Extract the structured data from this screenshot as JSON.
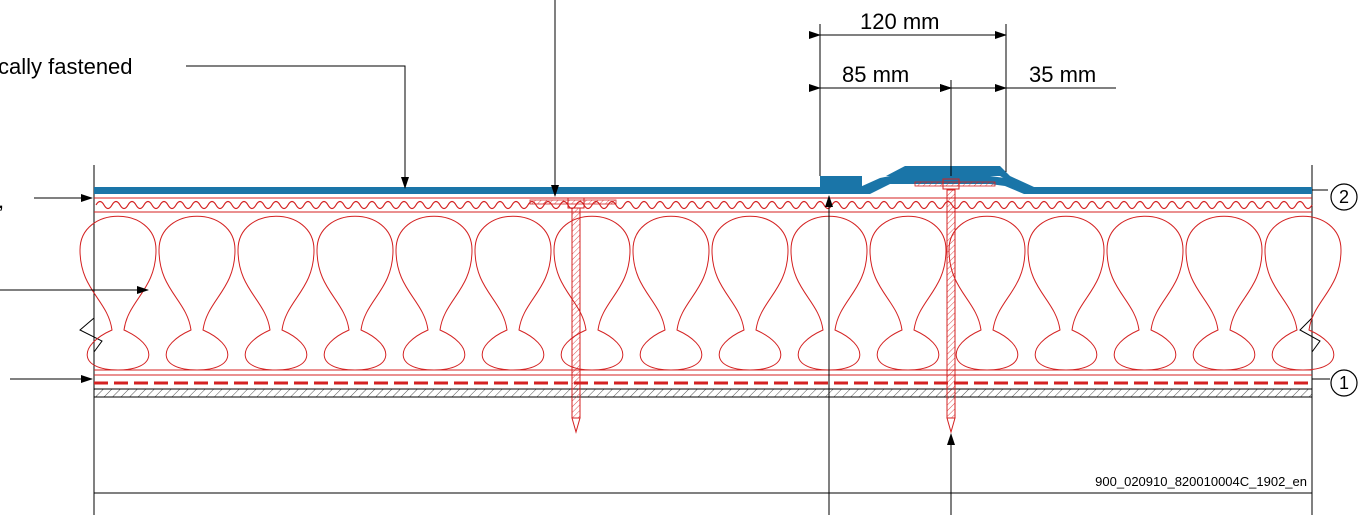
{
  "labels": {
    "top_left_callout": "cally fastened",
    "comma_mark": ","
  },
  "dimensions": {
    "total_overlap": "120 mm",
    "seam_to_fastener": "85 mm",
    "fastener_to_edge": "35 mm"
  },
  "markers": {
    "upper": "2",
    "lower": "1"
  },
  "drawing_ref": "900_020910_820010004C_1902_en",
  "colors": {
    "membrane": "#1a75a8",
    "insulation": "#d42222",
    "line": "#000000"
  }
}
